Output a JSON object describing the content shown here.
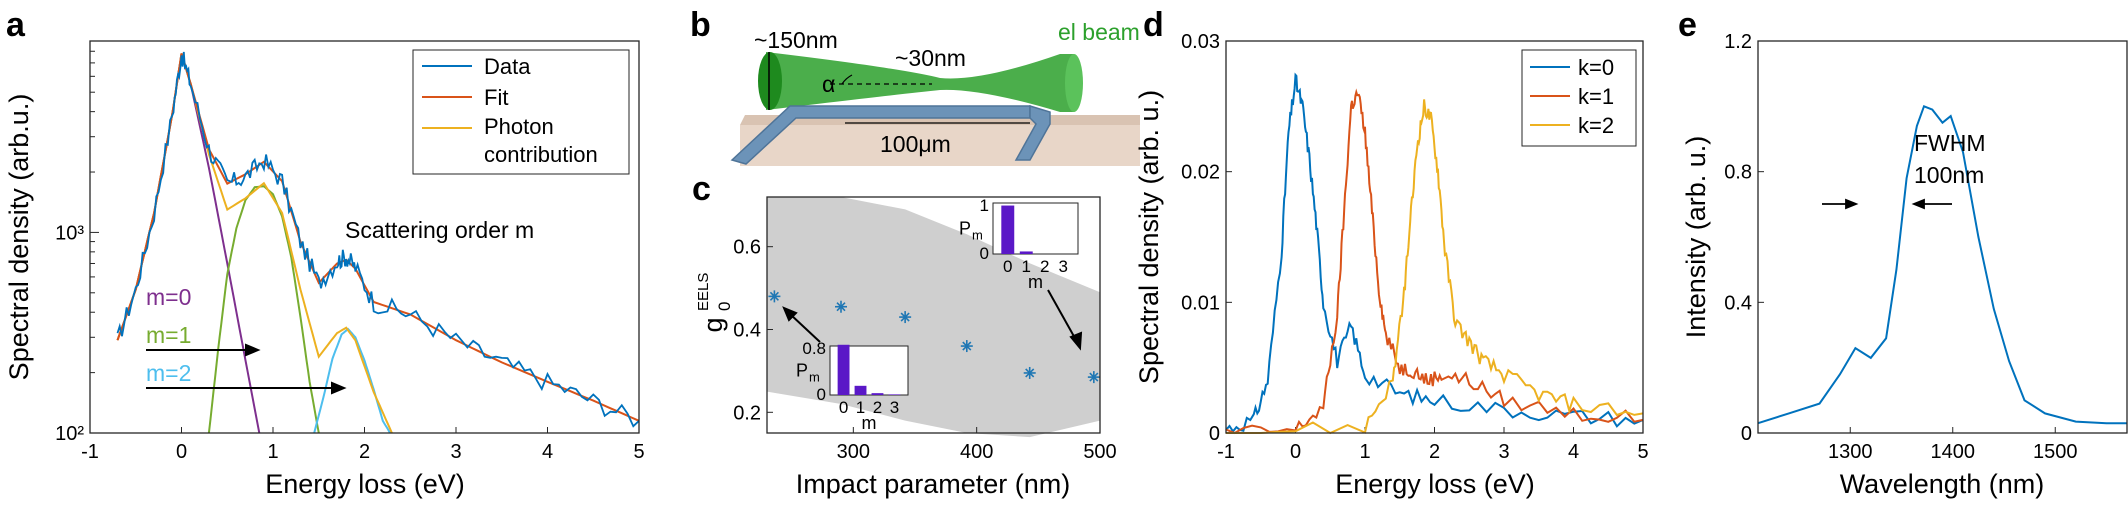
{
  "chart_data": [
    {
      "panel": "a",
      "type": "line",
      "yscale": "log",
      "xlabel": "Energy loss (eV)",
      "ylabel": "Spectral density (arb.u.)",
      "xlim": [
        -1,
        5
      ],
      "ylim": [
        100,
        9000
      ],
      "xticks": [
        "-1",
        "0",
        "1",
        "2",
        "3",
        "4",
        "5"
      ],
      "yticks": [
        "10²",
        "10³"
      ],
      "legend": [
        "Data",
        "Fit",
        "Photon contribution"
      ],
      "legend_lines": [
        "Data",
        "Fit",
        "Photon",
        "contribution"
      ],
      "annotation": "Scattering order m",
      "orders": [
        "m=0",
        "m=1",
        "m=2"
      ],
      "series": [
        {
          "name": "Data",
          "color": "#0072BD",
          "x": [
            -0.7,
            -0.5,
            -0.3,
            -0.1,
            0,
            0.1,
            0.3,
            0.5,
            0.7,
            0.9,
            1.1,
            1.3,
            1.5,
            1.7,
            1.8,
            1.9,
            2.1,
            2.5,
            3,
            3.5,
            4,
            4.5,
            5
          ],
          "y": [
            290,
            520,
            1250,
            3900,
            7800,
            5500,
            2600,
            1750,
            1900,
            2300,
            1800,
            900,
            560,
            720,
            760,
            670,
            450,
            390,
            290,
            225,
            180,
            145,
            115
          ]
        },
        {
          "name": "Fit",
          "color": "#D95319",
          "x": [
            -0.7,
            -0.5,
            -0.3,
            -0.1,
            0,
            0.1,
            0.3,
            0.5,
            0.7,
            0.9,
            1.1,
            1.3,
            1.5,
            1.7,
            1.8,
            1.9,
            2.1,
            2.5,
            3,
            3.5,
            4,
            4.5,
            5
          ],
          "y": [
            290,
            520,
            1250,
            3900,
            7800,
            5500,
            2600,
            1750,
            1950,
            2250,
            1800,
            900,
            560,
            700,
            730,
            660,
            450,
            390,
            290,
            225,
            180,
            145,
            115
          ]
        },
        {
          "name": "Photon contribution",
          "color": "#EDB120",
          "x": [
            -0.7,
            -0.5,
            -0.3,
            -0.1,
            0,
            0.1,
            0.3,
            0.5,
            0.7,
            0.9,
            1.1,
            1.3,
            1.5,
            1.7,
            1.8,
            1.9,
            2.1,
            2.3
          ],
          "y": [
            290,
            520,
            1250,
            3900,
            7800,
            5500,
            2450,
            1300,
            1480,
            1760,
            1250,
            520,
            240,
            315,
            335,
            290,
            160,
            100
          ]
        },
        {
          "name": "m=0",
          "color": "#7E2F8E",
          "x": [
            -0.7,
            -0.5,
            -0.3,
            -0.1,
            0,
            0.1,
            0.3,
            0.5,
            0.7,
            0.85
          ],
          "y": [
            290,
            520,
            1250,
            3900,
            7800,
            5500,
            2100,
            700,
            230,
            100
          ]
        },
        {
          "name": "m=1",
          "color": "#77AC30",
          "x": [
            0.3,
            0.4,
            0.5,
            0.6,
            0.7,
            0.8,
            0.9,
            1.0,
            1.1,
            1.2,
            1.3,
            1.4,
            1.5
          ],
          "y": [
            100,
            260,
            620,
            1050,
            1450,
            1680,
            1700,
            1550,
            1200,
            750,
            380,
            180,
            100
          ]
        },
        {
          "name": "m=2",
          "color": "#4DBEEE",
          "x": [
            1.45,
            1.55,
            1.65,
            1.75,
            1.82,
            1.9,
            2.0,
            2.1,
            2.2,
            2.28
          ],
          "y": [
            100,
            150,
            235,
            310,
            330,
            300,
            230,
            165,
            115,
            100
          ]
        }
      ]
    },
    {
      "panel": "b",
      "type": "schematic",
      "labels": {
        "width_top": "~150nm",
        "width_waist": "~30nm",
        "beam": "el beam",
        "angle": "α",
        "length": "100μm"
      }
    },
    {
      "panel": "c",
      "type": "scatter",
      "xlabel": "Impact parameter (nm)",
      "ylabel_main": "g",
      "ylabel_sub": "0",
      "ylabel_sup": "EELS",
      "xlim": [
        230,
        500
      ],
      "ylim": [
        0.15,
        0.72
      ],
      "xticks": [
        "300",
        "400",
        "500"
      ],
      "yticks": [
        "0.2",
        "0.4",
        "0.6"
      ],
      "x": [
        236,
        290,
        342,
        392,
        443,
        495
      ],
      "y": [
        0.48,
        0.455,
        0.43,
        0.36,
        0.295,
        0.285
      ],
      "band_upper": [
        0.76,
        0.74,
        0.69,
        0.63,
        0.56,
        0.49
      ],
      "band_lower": [
        0.25,
        0.22,
        0.18,
        0.15,
        0.14,
        0.18
      ],
      "inset_top": {
        "ylabel_main": "P",
        "ylabel_sub": "m",
        "xlabel": "m",
        "ytick": "1",
        "categories": [
          "0",
          "1",
          "2",
          "3"
        ],
        "values": [
          0.95,
          0.05,
          0.0,
          0.0
        ]
      },
      "inset_bottom": {
        "ylabel_main": "P",
        "ylabel_sub": "m",
        "xlabel": "m",
        "ytick": "0.8",
        "categories": [
          "0",
          "1",
          "2",
          "3"
        ],
        "values": [
          0.82,
          0.15,
          0.03,
          0.01
        ]
      },
      "color": "#1f77b4",
      "bar_color": "#5A18C7"
    },
    {
      "panel": "d",
      "type": "line",
      "xlabel": "Energy loss (eV)",
      "ylabel": "Spectral density (arb. u.)",
      "xlim": [
        -1,
        5
      ],
      "ylim": [
        0,
        0.03
      ],
      "xticks": [
        "-1",
        "0",
        "1",
        "2",
        "3",
        "4",
        "5"
      ],
      "yticks": [
        "0",
        "0.01",
        "0.02",
        "0.03"
      ],
      "legend": [
        "k=0",
        "k=1",
        "k=2"
      ],
      "series": [
        {
          "name": "k=0",
          "color": "#0072BD",
          "x": [
            -1,
            -0.6,
            -0.4,
            -0.2,
            -0.1,
            0,
            0.1,
            0.2,
            0.3,
            0.4,
            0.6,
            0.8,
            1.0,
            1.5,
            2,
            3,
            4,
            5
          ],
          "y": [
            0.0003,
            0.001,
            0.004,
            0.014,
            0.023,
            0.027,
            0.025,
            0.021,
            0.016,
            0.01,
            0.0055,
            0.0082,
            0.0045,
            0.003,
            0.0025,
            0.0018,
            0.0013,
            0.001
          ]
        },
        {
          "name": "k=1",
          "color": "#D95319",
          "x": [
            -1,
            0,
            0.4,
            0.6,
            0.7,
            0.8,
            0.9,
            1.0,
            1.1,
            1.2,
            1.3,
            1.5,
            1.7,
            1.9,
            2.1,
            2.5,
            3,
            4,
            5
          ],
          "y": [
            0.0,
            0.0002,
            0.002,
            0.009,
            0.017,
            0.025,
            0.026,
            0.023,
            0.017,
            0.011,
            0.0075,
            0.005,
            0.0048,
            0.004,
            0.0045,
            0.004,
            0.0025,
            0.0015,
            0.001
          ]
        },
        {
          "name": "k=2",
          "color": "#EDB120",
          "x": [
            -1,
            1,
            1.4,
            1.55,
            1.65,
            1.75,
            1.85,
            1.95,
            2.05,
            2.15,
            2.3,
            2.5,
            2.7,
            3,
            3.5,
            4,
            5
          ],
          "y": [
            0.0,
            0.0005,
            0.004,
            0.01,
            0.016,
            0.022,
            0.025,
            0.024,
            0.02,
            0.014,
            0.0085,
            0.007,
            0.0055,
            0.0045,
            0.003,
            0.0022,
            0.0015
          ]
        }
      ]
    },
    {
      "panel": "e",
      "type": "line",
      "xlabel": "Wavelength (nm)",
      "ylabel": "Intensity (arb. u.)",
      "xlim": [
        1210,
        1570
      ],
      "ylim": [
        0,
        1.2
      ],
      "xticks": [
        "1300",
        "1400",
        "1500"
      ],
      "yticks": [
        "0",
        "0.4",
        "0.8",
        "1.2"
      ],
      "annotation": [
        "FWHM",
        "100nm"
      ],
      "series": [
        {
          "name": "spectrum",
          "color": "#0072BD",
          "x": [
            1210,
            1240,
            1270,
            1290,
            1305,
            1320,
            1335,
            1345,
            1355,
            1365,
            1372,
            1380,
            1390,
            1398,
            1410,
            1425,
            1440,
            1455,
            1470,
            1490,
            1520,
            1550,
            1570
          ],
          "y": [
            0.03,
            0.06,
            0.09,
            0.18,
            0.26,
            0.23,
            0.29,
            0.5,
            0.78,
            0.94,
            1.0,
            0.99,
            0.95,
            0.97,
            0.86,
            0.6,
            0.38,
            0.22,
            0.1,
            0.06,
            0.035,
            0.03,
            0.03
          ]
        }
      ]
    }
  ],
  "panels": [
    "a",
    "b",
    "c",
    "d",
    "e"
  ]
}
